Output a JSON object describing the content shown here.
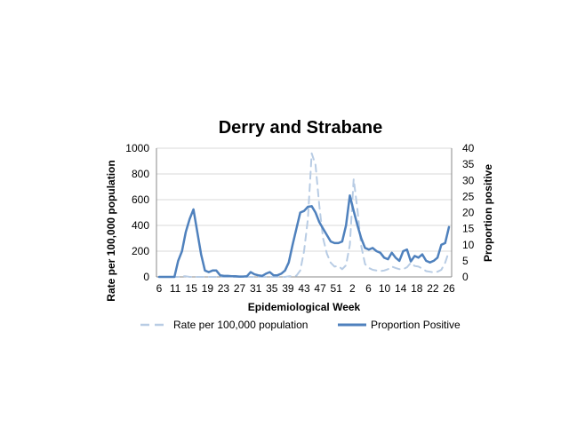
{
  "chart_data": {
    "type": "line",
    "title": "Derry and Strabane",
    "xlabel": "Epidemiological Week",
    "ylabel": "Rate per 100,000 population",
    "y2label": "Proportion positive",
    "x_tick_labels": [
      "6",
      "11",
      "15",
      "19",
      "23",
      "27",
      "31",
      "35",
      "39",
      "43",
      "47",
      "51",
      "2",
      "6",
      "10",
      "14",
      "18",
      "22",
      "26"
    ],
    "ylim": [
      0,
      1000
    ],
    "y_ticks": [
      "0",
      "200",
      "400",
      "600",
      "800",
      "1000"
    ],
    "y2lim": [
      0,
      40
    ],
    "y2_ticks": [
      "0",
      "5",
      "10",
      "15",
      "20",
      "25",
      "30",
      "35",
      "40"
    ],
    "grid": true,
    "legend_position": "bottom",
    "series": [
      {
        "name": "Rate per 100,000 population",
        "axis": "left",
        "color": "#b8cce4",
        "style": "dashed",
        "values": [
          0,
          0,
          0,
          0,
          0,
          0,
          5,
          5,
          0,
          0,
          0,
          0,
          0,
          0,
          0,
          0,
          0,
          0,
          0,
          0,
          0,
          0,
          0,
          0,
          0,
          0,
          0,
          0,
          0,
          0,
          0,
          0,
          0,
          0,
          5,
          5,
          10,
          50,
          200,
          450,
          960,
          870,
          550,
          300,
          180,
          110,
          80,
          85,
          60,
          90,
          250,
          760,
          520,
          240,
          100,
          70,
          55,
          50,
          45,
          50,
          60,
          80,
          70,
          60,
          60,
          75,
          110,
          85,
          80,
          65,
          45,
          40,
          35,
          40,
          55,
          110,
          200
        ]
      },
      {
        "name": "Proportion Positive",
        "axis": "right",
        "color": "#4f81bd",
        "style": "solid",
        "values": [
          0,
          0,
          0,
          0,
          0,
          5,
          8,
          14,
          18,
          21,
          14,
          7,
          2,
          1.5,
          2,
          2,
          0.5,
          0.3,
          0.3,
          0.2,
          0.2,
          0.1,
          0.1,
          0.2,
          1.5,
          0.8,
          0.5,
          0.3,
          1,
          1.5,
          0.5,
          0.5,
          1,
          2,
          4.5,
          10,
          15,
          20,
          20.5,
          21.8,
          22,
          20,
          17,
          15,
          13,
          11,
          10.5,
          10.5,
          11,
          16,
          25.3,
          20.5,
          16,
          12,
          9,
          8.5,
          9,
          8,
          7.5,
          6,
          5.5,
          7.5,
          6,
          5,
          8,
          8.5,
          4.8,
          6.5,
          6,
          7,
          5,
          4.5,
          5,
          6,
          10,
          10.5,
          15.5
        ]
      }
    ]
  }
}
